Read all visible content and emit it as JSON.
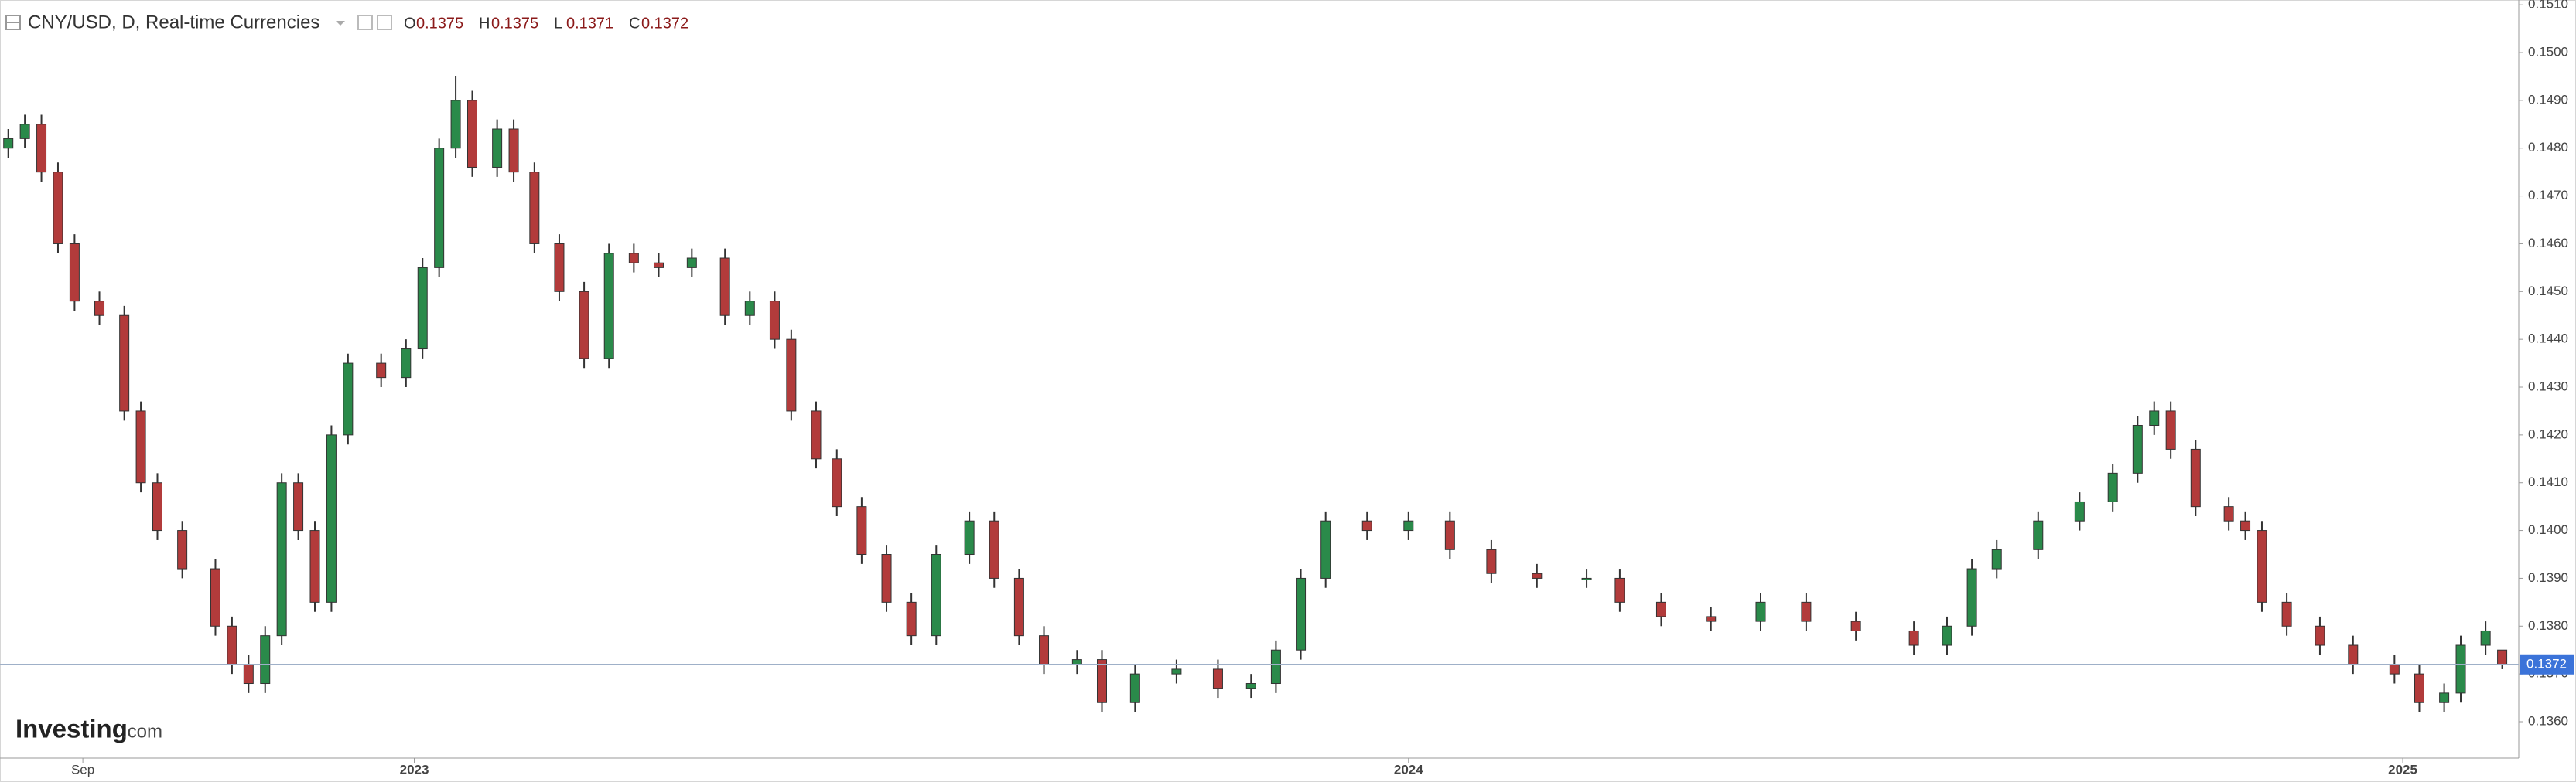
{
  "chart_data": {
    "type": "candlestick",
    "title": "CNY/USD, D, Real-time Currencies",
    "ohlc_labels": [
      "O",
      "H",
      "L",
      "C"
    ],
    "watermark": [
      "Investing",
      ".com"
    ],
    "up_color": "#2a8a4a",
    "down_color": "#b23b3b",
    "grid": false,
    "x": [
      7.1,
      7.3,
      7.5,
      7.7,
      7.9,
      8.2,
      8.5,
      8.7,
      8.9,
      9.2,
      9.6,
      9.8,
      10.0,
      10.2,
      10.4,
      10.6,
      10.8,
      11.0,
      11.2,
      11.6,
      11.9,
      12.1,
      12.3,
      12.5,
      12.7,
      13.0,
      13.2,
      13.45,
      13.75,
      14.05,
      14.35,
      14.65,
      14.95,
      15.35,
      15.75,
      16.05,
      16.35,
      16.55,
      16.85,
      17.1,
      17.4,
      17.7,
      18.0,
      18.3,
      18.7,
      19.0,
      19.3,
      19.6,
      20.0,
      20.3,
      20.7,
      21.2,
      21.7,
      22.1,
      22.4,
      22.7,
      23.0,
      23.5,
      24.0,
      24.5,
      25.0,
      25.55,
      26.15,
      26.55,
      27.05,
      27.65,
      28.25,
      28.8,
      29.4,
      30.1,
      30.5,
      30.8,
      31.1,
      31.6,
      32.1,
      32.5,
      32.8,
      33.0,
      33.2,
      33.5,
      33.9,
      34.1,
      34.3,
      34.6,
      35.0,
      35.4,
      35.9,
      36.2,
      36.5,
      36.7,
      37.0,
      37.2
    ],
    "open": [
      0.148,
      0.1482,
      0.1485,
      0.1475,
      0.146,
      0.1448,
      0.1445,
      0.1425,
      0.141,
      0.14,
      0.1392,
      0.138,
      0.1372,
      0.1368,
      0.1378,
      0.141,
      0.14,
      0.1385,
      0.142,
      0.1435,
      0.1432,
      0.1438,
      0.1455,
      0.148,
      0.149,
      0.1476,
      0.1484,
      0.1475,
      0.146,
      0.145,
      0.1436,
      0.1458,
      0.1456,
      0.1455,
      0.1457,
      0.1445,
      0.1448,
      0.144,
      0.1425,
      0.1415,
      0.1405,
      0.1395,
      0.1385,
      0.1378,
      0.1395,
      0.1402,
      0.139,
      0.1378,
      0.1372,
      0.1373,
      0.1364,
      0.137,
      0.1371,
      0.1367,
      0.1368,
      0.1375,
      0.139,
      0.1402,
      0.14,
      0.1402,
      0.1396,
      0.1391,
      0.139,
      0.139,
      0.1385,
      0.1382,
      0.1381,
      0.1385,
      0.1381,
      0.1379,
      0.1376,
      0.138,
      0.1392,
      0.1396,
      0.1402,
      0.1406,
      0.1412,
      0.1422,
      0.1425,
      0.1417,
      0.1405,
      0.1402,
      0.14,
      0.1385,
      0.138,
      0.1376,
      0.1372,
      0.137,
      0.1364,
      0.1366,
      0.1376,
      0.1375
    ],
    "high": [
      0.1484,
      0.1487,
      0.1487,
      0.1477,
      0.1462,
      0.145,
      0.1447,
      0.1427,
      0.1412,
      0.1402,
      0.1394,
      0.1382,
      0.1374,
      0.138,
      0.1412,
      0.1412,
      0.1402,
      0.1422,
      0.1437,
      0.1437,
      0.144,
      0.1457,
      0.1482,
      0.1495,
      0.1492,
      0.1486,
      0.1486,
      0.1477,
      0.1462,
      0.1452,
      0.146,
      0.146,
      0.1458,
      0.1459,
      0.1459,
      0.145,
      0.145,
      0.1442,
      0.1427,
      0.1417,
      0.1407,
      0.1397,
      0.1387,
      0.1397,
      0.1404,
      0.1404,
      0.1392,
      0.138,
      0.1375,
      0.1375,
      0.1372,
      0.1373,
      0.1373,
      0.137,
      0.1377,
      0.1392,
      0.1404,
      0.1404,
      0.1404,
      0.1404,
      0.1398,
      0.1393,
      0.1392,
      0.1392,
      0.1387,
      0.1384,
      0.1387,
      0.1387,
      0.1383,
      0.1381,
      0.1382,
      0.1394,
      0.1398,
      0.1404,
      0.1408,
      0.1414,
      0.1424,
      0.1427,
      0.1427,
      0.1419,
      0.1407,
      0.1404,
      0.1402,
      0.1387,
      0.1382,
      0.1378,
      0.1374,
      0.1372,
      0.1368,
      0.1378,
      0.1381,
      0.1375
    ],
    "low": [
      0.1478,
      0.148,
      0.1473,
      0.1458,
      0.1446,
      0.1443,
      0.1423,
      0.1408,
      0.1398,
      0.139,
      0.1378,
      0.137,
      0.1366,
      0.1366,
      0.1376,
      0.1398,
      0.1383,
      0.1383,
      0.1418,
      0.143,
      0.143,
      0.1436,
      0.1453,
      0.1478,
      0.1474,
      0.1474,
      0.1473,
      0.1458,
      0.1448,
      0.1434,
      0.1434,
      0.1454,
      0.1453,
      0.1453,
      0.1443,
      0.1443,
      0.1438,
      0.1423,
      0.1413,
      0.1403,
      0.1393,
      0.1383,
      0.1376,
      0.1376,
      0.1393,
      0.1388,
      0.1376,
      0.137,
      0.137,
      0.1362,
      0.1362,
      0.1368,
      0.1365,
      0.1365,
      0.1366,
      0.1373,
      0.1388,
      0.1398,
      0.1398,
      0.1394,
      0.1389,
      0.1388,
      0.1388,
      0.1383,
      0.138,
      0.1379,
      0.1379,
      0.1379,
      0.1377,
      0.1374,
      0.1374,
      0.1378,
      0.139,
      0.1394,
      0.14,
      0.1404,
      0.141,
      0.142,
      0.1415,
      0.1403,
      0.14,
      0.1398,
      0.1383,
      0.1378,
      0.1374,
      0.137,
      0.1368,
      0.1362,
      0.1362,
      0.1364,
      0.1374,
      0.1371
    ],
    "close": [
      0.1482,
      0.1485,
      0.1475,
      0.146,
      0.1448,
      0.1445,
      0.1425,
      0.141,
      0.14,
      0.1392,
      0.138,
      0.1372,
      0.1368,
      0.1378,
      0.141,
      0.14,
      0.1385,
      0.142,
      0.1435,
      0.1432,
      0.1438,
      0.1455,
      0.148,
      0.149,
      0.1476,
      0.1484,
      0.1475,
      0.146,
      0.145,
      0.1436,
      0.1458,
      0.1456,
      0.1455,
      0.1457,
      0.1445,
      0.1448,
      0.144,
      0.1425,
      0.1415,
      0.1405,
      0.1395,
      0.1385,
      0.1378,
      0.1395,
      0.1402,
      0.139,
      0.1378,
      0.1372,
      0.1373,
      0.1364,
      0.137,
      0.1371,
      0.1367,
      0.1368,
      0.1375,
      0.139,
      0.1402,
      0.14,
      0.1402,
      0.1396,
      0.1391,
      0.139,
      0.139,
      0.1385,
      0.1382,
      0.1381,
      0.1385,
      0.1381,
      0.1379,
      0.1376,
      0.138,
      0.1392,
      0.1396,
      0.1402,
      0.1406,
      0.1412,
      0.1422,
      0.1425,
      0.1417,
      0.1405,
      0.1402,
      0.14,
      0.1385,
      0.138,
      0.1376,
      0.1372,
      0.137,
      0.1364,
      0.1366,
      0.1376,
      0.1379,
      0.1372
    ],
    "xlim": [
      7,
      37.4
    ],
    "xticks": [
      {
        "value": 8,
        "label": "Sep"
      },
      {
        "value": 12,
        "label": "2023"
      },
      {
        "value": 24,
        "label": "2024"
      },
      {
        "value": 36,
        "label": "2025"
      }
    ],
    "ylim": [
      0.13524,
      0.1511
    ],
    "yticks": [
      {
        "value": 0.136,
        "label": "0.1360"
      },
      {
        "value": 0.137,
        "label": "0.1370"
      },
      {
        "value": 0.138,
        "label": "0.1380"
      },
      {
        "value": 0.139,
        "label": "0.1390"
      },
      {
        "value": 0.14,
        "label": "0.1400"
      },
      {
        "value": 0.141,
        "label": "0.1410"
      },
      {
        "value": 0.142,
        "label": "0.1420"
      },
      {
        "value": 0.143,
        "label": "0.1430"
      },
      {
        "value": 0.144,
        "label": "0.1440"
      },
      {
        "value": 0.145,
        "label": "0.1450"
      },
      {
        "value": 0.146,
        "label": "0.1460"
      },
      {
        "value": 0.147,
        "label": "0.1470"
      },
      {
        "value": 0.148,
        "label": "0.1480"
      },
      {
        "value": 0.149,
        "label": "0.1490"
      },
      {
        "value": 0.15,
        "label": "0.1500"
      },
      {
        "value": 0.151,
        "label": "0.1510"
      }
    ]
  }
}
